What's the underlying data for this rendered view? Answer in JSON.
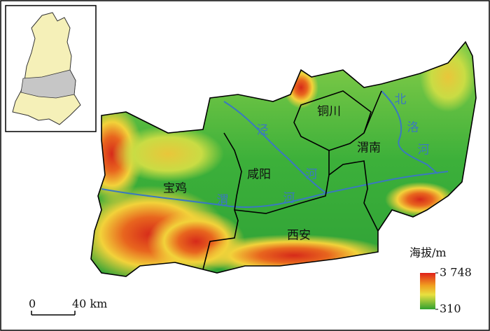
{
  "regions": [
    "宝鸡",
    "咸阳",
    "铜川",
    "渭南",
    "西安"
  ],
  "rivers": {
    "jing": [
      "泾",
      "河"
    ],
    "wei": [
      "渭",
      "河"
    ],
    "beiluo": [
      "北",
      "洛",
      "河"
    ]
  },
  "legend": {
    "title": "海拔/m",
    "max": {
      "value": 3748,
      "label": "3 748"
    },
    "min": 310
  },
  "scale_bar": {
    "ticks": [
      0,
      {
        "value": 40,
        "label": "40 km"
      }
    ]
  }
}
